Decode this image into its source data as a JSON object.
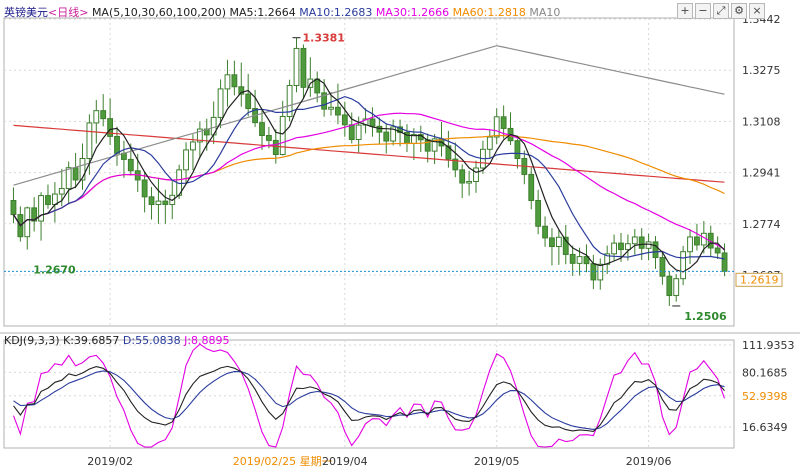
{
  "header": {
    "symbol": "英镑美元",
    "period": "<日线>",
    "ma_label": "MA(5,10,30,60,100,200)",
    "ma_items": [
      {
        "label": "MA5:1.2664",
        "color": "#222222"
      },
      {
        "label": "MA10:1.2683",
        "color": "#2a3c9e"
      },
      {
        "label": "MA30:1.2666",
        "color": "#e400e4"
      },
      {
        "label": "MA60:1.2818",
        "color": "#f08c00"
      },
      {
        "label": "MA10",
        "color": "#888888"
      }
    ],
    "toolbar_icons": [
      "add-icon",
      "subtract-icon",
      "expand-icon",
      "settings-icon",
      "close-icon"
    ]
  },
  "kdj_header": {
    "label": "KDJ(9,3,3)",
    "k": "K:39.6857",
    "d": "D:55.0838",
    "j": "J:8.8895"
  },
  "colors": {
    "up": "#4f9a3d",
    "down": "#4f9a3d",
    "ma5": "#222222",
    "ma10": "#2a3c9e",
    "ma30": "#e400e4",
    "ma60": "#f08c00",
    "ma100": "#8c8c8c",
    "ma200": "#d93a3a",
    "k": "#222222",
    "d": "#2a3c9e",
    "j": "#e400e4",
    "grid": "#d8d8d8",
    "current": "#1a8fd0"
  },
  "chart_data": {
    "type": "candlestick",
    "price_axis": {
      "ticks": [
        "1.3442",
        "1.3275",
        "1.3108",
        "1.2941",
        "1.2774",
        "1.2607"
      ],
      "values": [
        1.3442,
        1.3275,
        1.3108,
        1.2941,
        1.2774,
        1.2607
      ],
      "current": "1.2619"
    },
    "annotations": {
      "high": "1.3381",
      "low_left": "1.2670",
      "low_right": "1.2506"
    },
    "x_labels": [
      "2019/02",
      "2019/02/25  星期一",
      "2019/04",
      "2019/05",
      "2019/06"
    ],
    "kdj_axis": {
      "ticks": [
        "111.9353",
        "80.1685",
        "52.9398",
        "16.6349"
      ],
      "values": [
        111.9353,
        80.1685,
        52.9398,
        16.6349
      ]
    },
    "candles": [
      [
        1.285,
        1.2893,
        1.2776,
        1.2804
      ],
      [
        1.2804,
        1.2831,
        1.2716,
        1.2732
      ],
      [
        1.2732,
        1.283,
        1.269,
        1.2826
      ],
      [
        1.2826,
        1.2861,
        1.2749,
        1.2783
      ],
      [
        1.2783,
        1.2877,
        1.2719,
        1.2866
      ],
      [
        1.2866,
        1.2902,
        1.2823,
        1.2837
      ],
      [
        1.2837,
        1.291,
        1.2778,
        1.2871
      ],
      [
        1.2871,
        1.2953,
        1.2831,
        1.2889
      ],
      [
        1.2889,
        1.2977,
        1.2837,
        1.2957
      ],
      [
        1.2957,
        1.3005,
        1.289,
        1.2917
      ],
      [
        1.2917,
        1.3036,
        1.2885,
        1.2987
      ],
      [
        1.2987,
        1.3131,
        1.2934,
        1.3103
      ],
      [
        1.3103,
        1.3178,
        1.3036,
        1.3143
      ],
      [
        1.3143,
        1.3197,
        1.3092,
        1.3117
      ],
      [
        1.3117,
        1.3183,
        1.3031,
        1.3059
      ],
      [
        1.3059,
        1.3091,
        1.2963,
        1.3004
      ],
      [
        1.3004,
        1.3045,
        1.2924,
        1.2984
      ],
      [
        1.2984,
        1.3036,
        1.2931,
        1.2947
      ],
      [
        1.2947,
        1.3002,
        1.2878,
        1.2917
      ],
      [
        1.2917,
        1.2943,
        1.2811,
        1.2862
      ],
      [
        1.2862,
        1.2894,
        1.2788,
        1.2837
      ],
      [
        1.2837,
        1.2921,
        1.2774,
        1.2848
      ],
      [
        1.2848,
        1.2885,
        1.2774,
        1.2837
      ],
      [
        1.2837,
        1.2913,
        1.2789,
        1.2867
      ],
      [
        1.2867,
        1.2967,
        1.2855,
        1.295
      ],
      [
        1.295,
        1.304,
        1.2905,
        1.3015
      ],
      [
        1.3015,
        1.3066,
        1.2949,
        1.3041
      ],
      [
        1.3041,
        1.3107,
        1.2987,
        1.3083
      ],
      [
        1.3083,
        1.3117,
        1.3012,
        1.3064
      ],
      [
        1.3064,
        1.3173,
        1.3034,
        1.3121
      ],
      [
        1.3121,
        1.3245,
        1.3086,
        1.3214
      ],
      [
        1.3214,
        1.3309,
        1.3156,
        1.326
      ],
      [
        1.326,
        1.3306,
        1.3193,
        1.3221
      ],
      [
        1.3221,
        1.33,
        1.3156,
        1.3197
      ],
      [
        1.3197,
        1.3263,
        1.3125,
        1.315
      ],
      [
        1.315,
        1.3211,
        1.309,
        1.3104
      ],
      [
        1.3104,
        1.3145,
        1.3015,
        1.3062
      ],
      [
        1.3062,
        1.309,
        1.302,
        1.3046
      ],
      [
        1.3046,
        1.3082,
        1.297,
        1.3
      ],
      [
        1.3,
        1.3175,
        1.2997,
        1.3124
      ],
      [
        1.3124,
        1.3244,
        1.3109,
        1.3225
      ],
      [
        1.3225,
        1.3381,
        1.3203,
        1.3346
      ],
      [
        1.3346,
        1.3359,
        1.3181,
        1.3219
      ],
      [
        1.3219,
        1.3317,
        1.3188,
        1.3246
      ],
      [
        1.3246,
        1.3271,
        1.317,
        1.3201
      ],
      [
        1.3201,
        1.3246,
        1.3123,
        1.3148
      ],
      [
        1.3148,
        1.3204,
        1.3127,
        1.3154
      ],
      [
        1.3154,
        1.3231,
        1.3099,
        1.3129
      ],
      [
        1.3129,
        1.3172,
        1.3058,
        1.3097
      ],
      [
        1.3097,
        1.3137,
        1.3036,
        1.3049
      ],
      [
        1.3049,
        1.3124,
        1.3006,
        1.3096
      ],
      [
        1.3096,
        1.3151,
        1.3069,
        1.3116
      ],
      [
        1.3116,
        1.3154,
        1.3058,
        1.3092
      ],
      [
        1.3092,
        1.3121,
        1.3033,
        1.3073
      ],
      [
        1.3073,
        1.3101,
        1.3003,
        1.3044
      ],
      [
        1.3044,
        1.3114,
        1.303,
        1.309
      ],
      [
        1.309,
        1.3114,
        1.3027,
        1.3072
      ],
      [
        1.3072,
        1.3099,
        1.3008,
        1.3036
      ],
      [
        1.3036,
        1.3086,
        1.2982,
        1.3065
      ],
      [
        1.3065,
        1.3094,
        1.3008,
        1.3048
      ],
      [
        1.3048,
        1.3068,
        1.2974,
        1.3011
      ],
      [
        1.3011,
        1.3067,
        1.2969,
        1.3051
      ],
      [
        1.3051,
        1.3106,
        1.2993,
        1.3028
      ],
      [
        1.3028,
        1.3077,
        1.2957,
        1.2985
      ],
      [
        1.2985,
        1.3039,
        1.2926,
        1.295
      ],
      [
        1.295,
        1.2968,
        1.2858,
        1.2907
      ],
      [
        1.2907,
        1.2947,
        1.2866,
        1.2912
      ],
      [
        1.2912,
        1.298,
        1.2875,
        1.2956
      ],
      [
        1.2956,
        1.3045,
        1.2937,
        1.3017
      ],
      [
        1.3017,
        1.3082,
        1.2989,
        1.3057
      ],
      [
        1.3057,
        1.3151,
        1.3034,
        1.3123
      ],
      [
        1.3123,
        1.316,
        1.3052,
        1.3085
      ],
      [
        1.3085,
        1.3138,
        1.3031,
        1.3045
      ],
      [
        1.3045,
        1.3051,
        1.2954,
        1.2987
      ],
      [
        1.2987,
        1.3013,
        1.2903,
        1.2935
      ],
      [
        1.2935,
        1.2958,
        1.2821,
        1.285
      ],
      [
        1.285,
        1.2885,
        1.274,
        1.2766
      ],
      [
        1.2766,
        1.2798,
        1.2699,
        1.2728
      ],
      [
        1.2728,
        1.276,
        1.2638,
        1.27
      ],
      [
        1.27,
        1.2754,
        1.264,
        1.273
      ],
      [
        1.273,
        1.277,
        1.2642,
        1.2674
      ],
      [
        1.2674,
        1.2703,
        1.2604,
        1.2645
      ],
      [
        1.2645,
        1.2696,
        1.2605,
        1.2667
      ],
      [
        1.2667,
        1.2707,
        1.2616,
        1.2644
      ],
      [
        1.2644,
        1.2673,
        1.2561,
        1.2591
      ],
      [
        1.2591,
        1.2661,
        1.2559,
        1.2642
      ],
      [
        1.2642,
        1.2703,
        1.261,
        1.2676
      ],
      [
        1.2676,
        1.2739,
        1.2651,
        1.2711
      ],
      [
        1.2711,
        1.2744,
        1.265,
        1.269
      ],
      [
        1.269,
        1.2739,
        1.2654,
        1.2709
      ],
      [
        1.2709,
        1.2757,
        1.2673,
        1.2731
      ],
      [
        1.2731,
        1.276,
        1.2656,
        1.2694
      ],
      [
        1.2694,
        1.2742,
        1.2655,
        1.2715
      ],
      [
        1.2715,
        1.2734,
        1.2627,
        1.2664
      ],
      [
        1.2664,
        1.2681,
        1.2575,
        1.2603
      ],
      [
        1.2603,
        1.2618,
        1.2506,
        1.254
      ],
      [
        1.254,
        1.261,
        1.252,
        1.2595
      ],
      [
        1.2595,
        1.2702,
        1.2574,
        1.2683
      ],
      [
        1.2683,
        1.2757,
        1.2643,
        1.2731
      ],
      [
        1.2731,
        1.2774,
        1.2687,
        1.2705
      ],
      [
        1.2705,
        1.2783,
        1.2677,
        1.2743
      ],
      [
        1.2743,
        1.2768,
        1.2669,
        1.2695
      ],
      [
        1.2695,
        1.2733,
        1.2659,
        1.2679
      ],
      [
        1.2679,
        1.271,
        1.2603,
        1.2619
      ]
    ]
  }
}
